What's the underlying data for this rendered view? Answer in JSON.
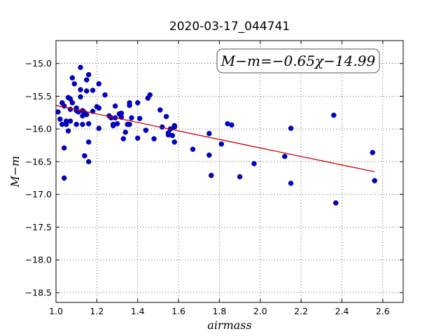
{
  "chart_data": {
    "type": "scatter",
    "title": "2020-03-17_044741",
    "xlabel": "airmass",
    "ylabel": "M−m",
    "xlim": [
      1.0,
      2.7
    ],
    "ylim": [
      -18.65,
      -14.65
    ],
    "y_inverted": true,
    "xticks": [
      1.0,
      1.2,
      1.4,
      1.6,
      1.8,
      2.0,
      2.2,
      2.4,
      2.6
    ],
    "xtick_labels": [
      "1.0",
      "1.2",
      "1.4",
      "1.6",
      "1.8",
      "2.0",
      "2.2",
      "2.4",
      "2.6"
    ],
    "yticks": [
      -15.0,
      -15.5,
      -16.0,
      -16.5,
      -17.0,
      -17.5,
      -18.0,
      -18.5
    ],
    "ytick_labels": [
      "−15.0",
      "−15.5",
      "−16.0",
      "−16.5",
      "−17.0",
      "−17.5",
      "−18.0",
      "−18.5"
    ],
    "grid": true,
    "annotation": "M−m=−0.65χ−14.99",
    "annotation_position": "top-right",
    "series": [
      {
        "kind": "points",
        "color": "#0000cc",
        "points": [
          [
            1.01,
            -15.74
          ],
          [
            1.02,
            -15.85
          ],
          [
            1.03,
            -15.93
          ],
          [
            1.03,
            -15.6
          ],
          [
            1.04,
            -15.65
          ],
          [
            1.04,
            -16.29
          ],
          [
            1.04,
            -16.75
          ],
          [
            1.05,
            -15.88
          ],
          [
            1.05,
            -15.93
          ],
          [
            1.06,
            -15.52
          ],
          [
            1.06,
            -16.03
          ],
          [
            1.07,
            -15.7
          ],
          [
            1.07,
            -15.54
          ],
          [
            1.07,
            -15.88
          ],
          [
            1.08,
            -15.22
          ],
          [
            1.08,
            -15.6
          ],
          [
            1.09,
            -15.31
          ],
          [
            1.1,
            -15.68
          ],
          [
            1.1,
            -15.72
          ],
          [
            1.1,
            -15.93
          ],
          [
            1.11,
            -15.74
          ],
          [
            1.12,
            -15.06
          ],
          [
            1.12,
            -15.51
          ],
          [
            1.12,
            -15.4
          ],
          [
            1.13,
            -15.8
          ],
          [
            1.13,
            -15.72
          ],
          [
            1.13,
            -15.93
          ],
          [
            1.14,
            -15.75
          ],
          [
            1.14,
            -16.41
          ],
          [
            1.15,
            -15.25
          ],
          [
            1.15,
            -15.42
          ],
          [
            1.15,
            -15.78
          ],
          [
            1.16,
            -15.17
          ],
          [
            1.16,
            -15.92
          ],
          [
            1.16,
            -16.2
          ],
          [
            1.16,
            -16.5
          ],
          [
            1.18,
            -15.41
          ],
          [
            1.18,
            -15.73
          ],
          [
            1.2,
            -15.66
          ],
          [
            1.21,
            -15.31
          ],
          [
            1.21,
            -15.68
          ],
          [
            1.21,
            -15.99
          ],
          [
            1.24,
            -15.48
          ],
          [
            1.26,
            -15.8
          ],
          [
            1.27,
            -15.83
          ],
          [
            1.28,
            -15.93
          ],
          [
            1.28,
            -15.95
          ],
          [
            1.29,
            -15.65
          ],
          [
            1.29,
            -15.83
          ],
          [
            1.3,
            -15.92
          ],
          [
            1.31,
            -15.77
          ],
          [
            1.32,
            -15.76
          ],
          [
            1.32,
            -15.82
          ],
          [
            1.33,
            -16.15
          ],
          [
            1.34,
            -16.05
          ],
          [
            1.35,
            -15.93
          ],
          [
            1.36,
            -15.93
          ],
          [
            1.36,
            -15.6
          ],
          [
            1.36,
            -15.64
          ],
          [
            1.37,
            -15.83
          ],
          [
            1.4,
            -15.6
          ],
          [
            1.4,
            -16.14
          ],
          [
            1.41,
            -15.84
          ],
          [
            1.44,
            -16.02
          ],
          [
            1.45,
            -15.53
          ],
          [
            1.46,
            -15.48
          ],
          [
            1.48,
            -16.15
          ],
          [
            1.51,
            -15.71
          ],
          [
            1.52,
            -15.97
          ],
          [
            1.54,
            -15.81
          ],
          [
            1.55,
            -16.06
          ],
          [
            1.55,
            -16.09
          ],
          [
            1.56,
            -16.0
          ],
          [
            1.57,
            -16.1
          ],
          [
            1.58,
            -16.2
          ],
          [
            1.58,
            -15.97
          ],
          [
            1.58,
            -15.95
          ],
          [
            1.67,
            -16.31
          ],
          [
            1.75,
            -16.07
          ],
          [
            1.75,
            -16.4
          ],
          [
            1.76,
            -16.71
          ],
          [
            1.81,
            -16.23
          ],
          [
            1.84,
            -15.92
          ],
          [
            1.86,
            -15.94
          ],
          [
            1.9,
            -16.73
          ],
          [
            1.97,
            -16.53
          ],
          [
            2.12,
            -16.42
          ],
          [
            2.15,
            -15.99
          ],
          [
            2.15,
            -16.83
          ],
          [
            2.36,
            -15.79
          ],
          [
            2.37,
            -17.13
          ],
          [
            2.55,
            -16.36
          ],
          [
            2.56,
            -16.79
          ]
        ]
      },
      {
        "kind": "fit-line",
        "color": "#cc0000",
        "slope": -0.65,
        "intercept": -14.99,
        "x_range": [
          1.0,
          2.56
        ]
      }
    ]
  }
}
